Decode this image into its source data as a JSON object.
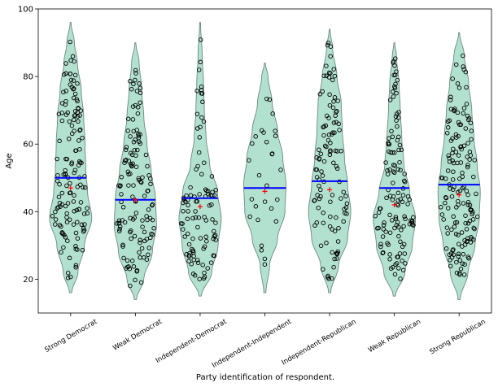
{
  "chart_data": {
    "type": "violin",
    "xlabel": "Party identification of respondent.",
    "ylabel": "Age",
    "ylim": [
      10,
      100
    ],
    "yticks": [
      20,
      40,
      60,
      80,
      100
    ],
    "categories": [
      "Strong Democrat",
      "Weak Democrat",
      "Independent-Democrat",
      "Independent-Independent",
      "Independent-Republican",
      "Weak Republican",
      "Strong Republican"
    ],
    "colors": {
      "violin_fill": "#b2e1d0",
      "violin_edge": "#6f8a80",
      "median_line": "#0000ff",
      "mean_marker": "#ff0000",
      "point_edge": "#000000"
    },
    "series": [
      {
        "median": 50,
        "mean": 47,
        "range": [
          16,
          96
        ],
        "n_points": 140,
        "profile": [
          [
            16,
            0.05
          ],
          [
            22,
            0.35
          ],
          [
            30,
            0.65
          ],
          [
            38,
            1.0
          ],
          [
            46,
            0.8
          ],
          [
            52,
            0.72
          ],
          [
            60,
            0.68
          ],
          [
            68,
            0.62
          ],
          [
            76,
            0.5
          ],
          [
            84,
            0.32
          ],
          [
            90,
            0.18
          ],
          [
            96,
            0.02
          ]
        ]
      },
      {
        "median": 43.5,
        "mean": 43.5,
        "range": [
          14,
          90
        ],
        "n_points": 130,
        "profile": [
          [
            14,
            0.05
          ],
          [
            20,
            0.4
          ],
          [
            28,
            0.8
          ],
          [
            36,
            1.0
          ],
          [
            44,
            0.95
          ],
          [
            52,
            0.75
          ],
          [
            60,
            0.55
          ],
          [
            68,
            0.4
          ],
          [
            76,
            0.3
          ],
          [
            84,
            0.18
          ],
          [
            90,
            0.02
          ]
        ]
      },
      {
        "median": 44,
        "mean": 41.5,
        "range": [
          15,
          96
        ],
        "n_points": 100,
        "profile": [
          [
            15,
            0.05
          ],
          [
            22,
            0.55
          ],
          [
            30,
            0.85
          ],
          [
            38,
            1.0
          ],
          [
            46,
            0.82
          ],
          [
            54,
            0.45
          ],
          [
            62,
            0.28
          ],
          [
            70,
            0.2
          ],
          [
            78,
            0.16
          ],
          [
            86,
            0.1
          ],
          [
            96,
            0.02
          ]
        ]
      },
      {
        "median": 47,
        "mean": 46,
        "range": [
          16,
          84
        ],
        "n_points": 28,
        "profile": [
          [
            16,
            0.05
          ],
          [
            24,
            0.22
          ],
          [
            32,
            0.6
          ],
          [
            40,
            0.95
          ],
          [
            48,
            1.0
          ],
          [
            56,
            0.85
          ],
          [
            64,
            0.6
          ],
          [
            72,
            0.35
          ],
          [
            80,
            0.15
          ],
          [
            84,
            0.02
          ]
        ]
      },
      {
        "median": 49,
        "mean": 46.5,
        "range": [
          16,
          94
        ],
        "n_points": 110,
        "profile": [
          [
            16,
            0.05
          ],
          [
            24,
            0.42
          ],
          [
            32,
            0.85
          ],
          [
            40,
            1.0
          ],
          [
            48,
            0.85
          ],
          [
            56,
            0.7
          ],
          [
            64,
            0.6
          ],
          [
            72,
            0.55
          ],
          [
            80,
            0.35
          ],
          [
            88,
            0.15
          ],
          [
            94,
            0.02
          ]
        ]
      },
      {
        "median": 47,
        "mean": 42,
        "range": [
          15,
          90
        ],
        "n_points": 125,
        "profile": [
          [
            15,
            0.05
          ],
          [
            22,
            0.5
          ],
          [
            30,
            0.85
          ],
          [
            38,
            1.0
          ],
          [
            46,
            0.72
          ],
          [
            54,
            0.45
          ],
          [
            62,
            0.35
          ],
          [
            70,
            0.28
          ],
          [
            78,
            0.22
          ],
          [
            86,
            0.1
          ],
          [
            90,
            0.02
          ]
        ]
      },
      {
        "median": 48,
        "mean": 45,
        "range": [
          14,
          93
        ],
        "n_points": 155,
        "profile": [
          [
            14,
            0.05
          ],
          [
            22,
            0.42
          ],
          [
            30,
            0.75
          ],
          [
            38,
            0.95
          ],
          [
            46,
            1.0
          ],
          [
            54,
            0.85
          ],
          [
            62,
            0.7
          ],
          [
            70,
            0.6
          ],
          [
            78,
            0.45
          ],
          [
            86,
            0.25
          ],
          [
            93,
            0.02
          ]
        ]
      }
    ]
  }
}
